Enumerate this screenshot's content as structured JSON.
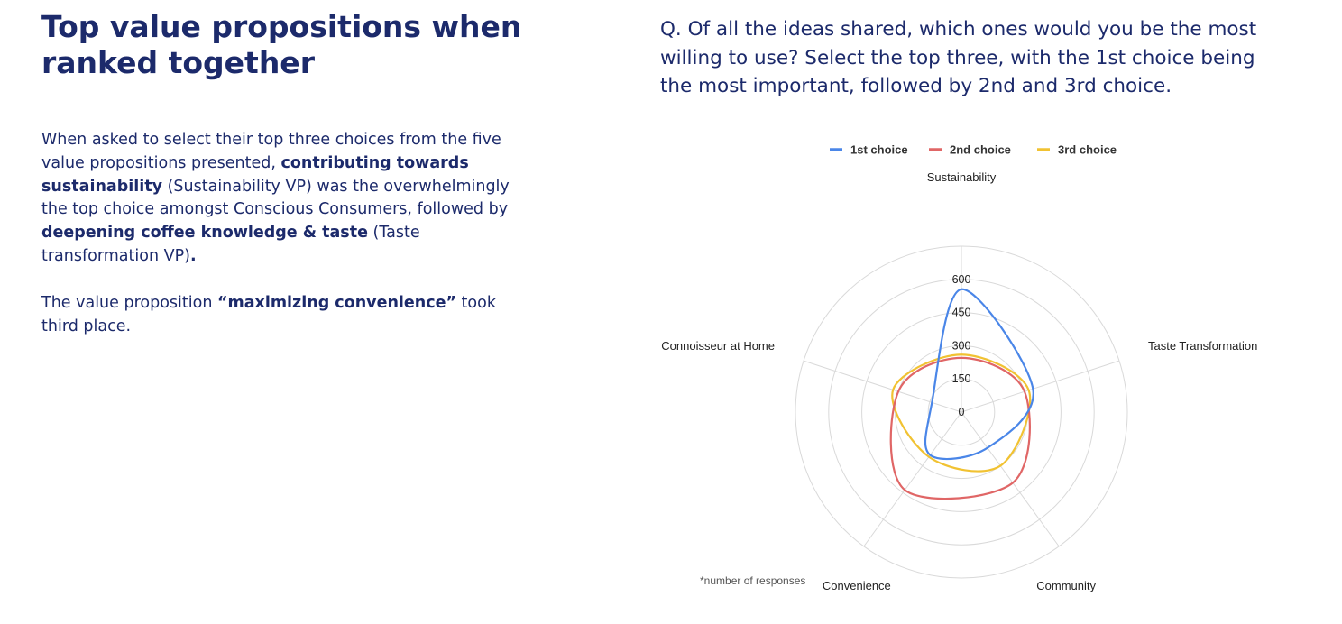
{
  "left": {
    "title": "Top value propositions when ranked together",
    "para1_a": "When asked to select their top three choices from the five value propositions presented, ",
    "para1_b": "contributing towards sustainability",
    "para1_c": " (Sustainability VP) was the overwhelmingly the top choice amongst Conscious Consumers, followed by ",
    "para1_d": "deepening coffee knowledge & taste",
    "para1_e": " (Taste transformation VP)",
    "para1_f": ".",
    "para2_a": "The value proposition ",
    "para2_b": "“maximizing convenience”",
    "para2_c": " took third place."
  },
  "question": "Q. Of all the ideas shared, which ones would you be the most willing to use? Select the top three, with the 1st choice being the most important, followed by 2nd and 3rd choice.",
  "footnote": "*number of responses",
  "colors": {
    "text": "#1c2a6b",
    "grid": "#d9d9d9",
    "axis_label": "#222222"
  },
  "chart_data": {
    "type": "radar",
    "axes": [
      "Sustainability",
      "Taste Transformation",
      "Community",
      "Convenience",
      "Connoisseur at Home"
    ],
    "ticks": [
      "0",
      "150",
      "300",
      "450",
      "600"
    ],
    "rlim": [
      0,
      750
    ],
    "grid": true,
    "legend_position": "top",
    "series": [
      {
        "name": "1st choice",
        "color": "#4a86e8",
        "values": [
          555,
          340,
          200,
          240,
          140
        ]
      },
      {
        "name": "2nd choice",
        "color": "#e06666",
        "values": [
          245,
          300,
          395,
          435,
          300
        ]
      },
      {
        "name": "3rd choice",
        "color": "#f1c232",
        "values": [
          260,
          320,
          300,
          250,
          325
        ]
      }
    ]
  }
}
